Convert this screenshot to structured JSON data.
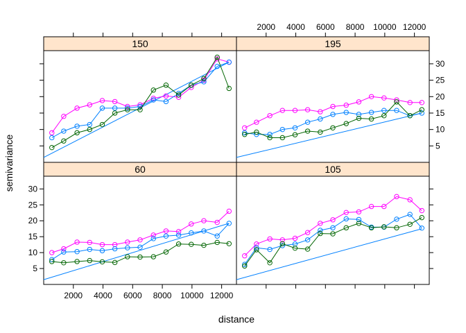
{
  "chart_data": {
    "type": "line",
    "xlabel": "distance",
    "ylabel": "semivariance",
    "xlim": [
      0,
      13000
    ],
    "ylim": [
      0,
      34
    ],
    "x_ticks": [
      2000,
      4000,
      6000,
      8000,
      10000,
      12000
    ],
    "y_ticks": [
      5,
      10,
      15,
      20,
      25,
      30
    ],
    "colors": {
      "magenta": "#ff00ff",
      "blue": "#0080ff",
      "green": "#006400",
      "strip": "#ffe5cc"
    },
    "panels": [
      {
        "title": "150",
        "series": [
          {
            "color": "magenta",
            "points": [
              [
                550,
                9
              ],
              [
                1350,
                14
              ],
              [
                2250,
                16.5
              ],
              [
                3100,
                17.5
              ],
              [
                3950,
                18.8
              ],
              [
                4800,
                18.5
              ],
              [
                5650,
                17
              ],
              [
                6500,
                17.5
              ],
              [
                7400,
                19.5
              ],
              [
                8250,
                20.2
              ],
              [
                9100,
                19.8
              ],
              [
                9950,
                22.8
              ],
              [
                10800,
                25
              ],
              [
                11700,
                31.5
              ],
              [
                12500,
                30.5
              ]
            ]
          },
          {
            "color": "blue",
            "points": [
              [
                550,
                7.5
              ],
              [
                1350,
                9.5
              ],
              [
                2250,
                11
              ],
              [
                3100,
                11.5
              ],
              [
                3950,
                16.5
              ],
              [
                4800,
                16.5
              ],
              [
                5650,
                16.5
              ],
              [
                6500,
                17
              ],
              [
                7400,
                19
              ],
              [
                8250,
                18.5
              ],
              [
                9100,
                21
              ],
              [
                9950,
                23.5
              ],
              [
                10800,
                24.5
              ],
              [
                11700,
                29.2
              ],
              [
                12500,
                30.5
              ]
            ]
          },
          {
            "color": "green",
            "points": [
              [
                550,
                4.5
              ],
              [
                1350,
                6.5
              ],
              [
                2250,
                9
              ],
              [
                3100,
                10
              ],
              [
                3950,
                11.5
              ],
              [
                4800,
                15
              ],
              [
                5650,
                16
              ],
              [
                6500,
                16
              ],
              [
                7400,
                22
              ],
              [
                8250,
                23.5
              ],
              [
                9100,
                20.5
              ],
              [
                9950,
                23.5
              ],
              [
                10800,
                25.5
              ],
              [
                11700,
                32
              ],
              [
                12500,
                22.5
              ]
            ]
          }
        ],
        "model": [
          [
            0,
            1.5
          ],
          [
            12500,
            30.5
          ]
        ]
      },
      {
        "title": "195",
        "series": [
          {
            "color": "magenta",
            "points": [
              [
                550,
                10.5
              ],
              [
                1350,
                12.2
              ],
              [
                2250,
                14.2
              ],
              [
                3100,
                15.8
              ],
              [
                3950,
                15.8
              ],
              [
                4800,
                16
              ],
              [
                5650,
                15.4
              ],
              [
                6500,
                17
              ],
              [
                7400,
                17.4
              ],
              [
                8250,
                18.4
              ],
              [
                9100,
                20
              ],
              [
                9950,
                19.6
              ],
              [
                10800,
                19
              ],
              [
                11700,
                18.2
              ],
              [
                12500,
                18.2
              ]
            ]
          },
          {
            "color": "blue",
            "points": [
              [
                550,
                9
              ],
              [
                1350,
                8.5
              ],
              [
                2250,
                8.5
              ],
              [
                3100,
                10
              ],
              [
                3950,
                10.5
              ],
              [
                4800,
                12.2
              ],
              [
                5650,
                13.2
              ],
              [
                6500,
                14.6
              ],
              [
                7400,
                15.2
              ],
              [
                8250,
                14.6
              ],
              [
                9100,
                15.2
              ],
              [
                9950,
                15.8
              ],
              [
                10800,
                15.8
              ],
              [
                11700,
                14.2
              ],
              [
                12500,
                15
              ]
            ]
          },
          {
            "color": "green",
            "points": [
              [
                550,
                8.5
              ],
              [
                1350,
                9.2
              ],
              [
                2250,
                7.5
              ],
              [
                3100,
                7.5
              ],
              [
                3950,
                8.4
              ],
              [
                4800,
                9.5
              ],
              [
                5650,
                9.2
              ],
              [
                6500,
                10.5
              ],
              [
                7400,
                11.8
              ],
              [
                8250,
                13.4
              ],
              [
                9100,
                13.2
              ],
              [
                9950,
                14.2
              ],
              [
                10800,
                18.4
              ],
              [
                11700,
                14.2
              ],
              [
                12500,
                16
              ]
            ]
          }
        ],
        "model": [
          [
            0,
            1.5
          ],
          [
            12500,
            15
          ]
        ]
      },
      {
        "title": "60",
        "series": [
          {
            "color": "magenta",
            "points": [
              [
                550,
                10
              ],
              [
                1350,
                11.2
              ],
              [
                2250,
                13.3
              ],
              [
                3100,
                13.2
              ],
              [
                3950,
                12.5
              ],
              [
                4800,
                12.5
              ],
              [
                5650,
                13.3
              ],
              [
                6500,
                14
              ],
              [
                7400,
                15.5
              ],
              [
                8250,
                16.8
              ],
              [
                9100,
                16.6
              ],
              [
                9950,
                19
              ],
              [
                10800,
                20
              ],
              [
                11700,
                19.5
              ],
              [
                12500,
                23
              ]
            ]
          },
          {
            "color": "blue",
            "points": [
              [
                550,
                7.8
              ],
              [
                1350,
                10.2
              ],
              [
                2250,
                10.3
              ],
              [
                3100,
                11
              ],
              [
                3950,
                10.6
              ],
              [
                4800,
                11.2
              ],
              [
                5650,
                11.5
              ],
              [
                6500,
                11.7
              ],
              [
                7400,
                14.4
              ],
              [
                8250,
                15.2
              ],
              [
                9100,
                15.5
              ],
              [
                9950,
                16.2
              ],
              [
                10800,
                16.8
              ],
              [
                11700,
                15.2
              ],
              [
                12500,
                19.2
              ]
            ]
          },
          {
            "color": "green",
            "points": [
              [
                550,
                7.2
              ],
              [
                1350,
                6.8
              ],
              [
                2250,
                7.2
              ],
              [
                3100,
                7.5
              ],
              [
                3950,
                7.1
              ],
              [
                4800,
                6.9
              ],
              [
                5650,
                8.7
              ],
              [
                6500,
                8.6
              ],
              [
                7400,
                8.7
              ],
              [
                8250,
                10.2
              ],
              [
                9100,
                12.7
              ],
              [
                9950,
                12.6
              ],
              [
                10800,
                12.3
              ],
              [
                11700,
                13.2
              ],
              [
                12500,
                12.8
              ]
            ]
          }
        ],
        "model": [
          [
            0,
            1.5
          ],
          [
            12500,
            19.2
          ]
        ]
      },
      {
        "title": "105",
        "series": [
          {
            "color": "magenta",
            "points": [
              [
                550,
                9
              ],
              [
                1350,
                12.7
              ],
              [
                2250,
                14.3
              ],
              [
                3100,
                14
              ],
              [
                3950,
                14.5
              ],
              [
                4800,
                16.3
              ],
              [
                5650,
                19.2
              ],
              [
                6500,
                20.3
              ],
              [
                7400,
                22.6
              ],
              [
                8250,
                22.8
              ],
              [
                9100,
                24.5
              ],
              [
                9950,
                24.5
              ],
              [
                10800,
                27.6
              ],
              [
                11700,
                26.6
              ],
              [
                12500,
                23.2
              ]
            ]
          },
          {
            "color": "blue",
            "points": [
              [
                550,
                6.3
              ],
              [
                1350,
                11.5
              ],
              [
                2250,
                11
              ],
              [
                3100,
                12.2
              ],
              [
                3950,
                12.7
              ],
              [
                4800,
                14
              ],
              [
                5650,
                17
              ],
              [
                6500,
                17.8
              ],
              [
                7400,
                20.6
              ],
              [
                8250,
                20.4
              ],
              [
                9100,
                18
              ],
              [
                9950,
                18
              ],
              [
                10800,
                20.5
              ],
              [
                11700,
                22
              ],
              [
                12500,
                17.7
              ]
            ]
          },
          {
            "color": "green",
            "points": [
              [
                550,
                5.8
              ],
              [
                1350,
                10.9
              ],
              [
                2250,
                6.8
              ],
              [
                3100,
                12.8
              ],
              [
                3950,
                11.4
              ],
              [
                4800,
                11.1
              ],
              [
                5650,
                16
              ],
              [
                6500,
                15.9
              ],
              [
                7400,
                17.8
              ],
              [
                8250,
                19.2
              ],
              [
                9100,
                17.8
              ],
              [
                9950,
                18.1
              ],
              [
                10800,
                17.8
              ],
              [
                11700,
                18.9
              ],
              [
                12500,
                21
              ]
            ]
          }
        ],
        "model": [
          [
            0,
            1.5
          ],
          [
            12500,
            17.5
          ]
        ]
      }
    ]
  }
}
